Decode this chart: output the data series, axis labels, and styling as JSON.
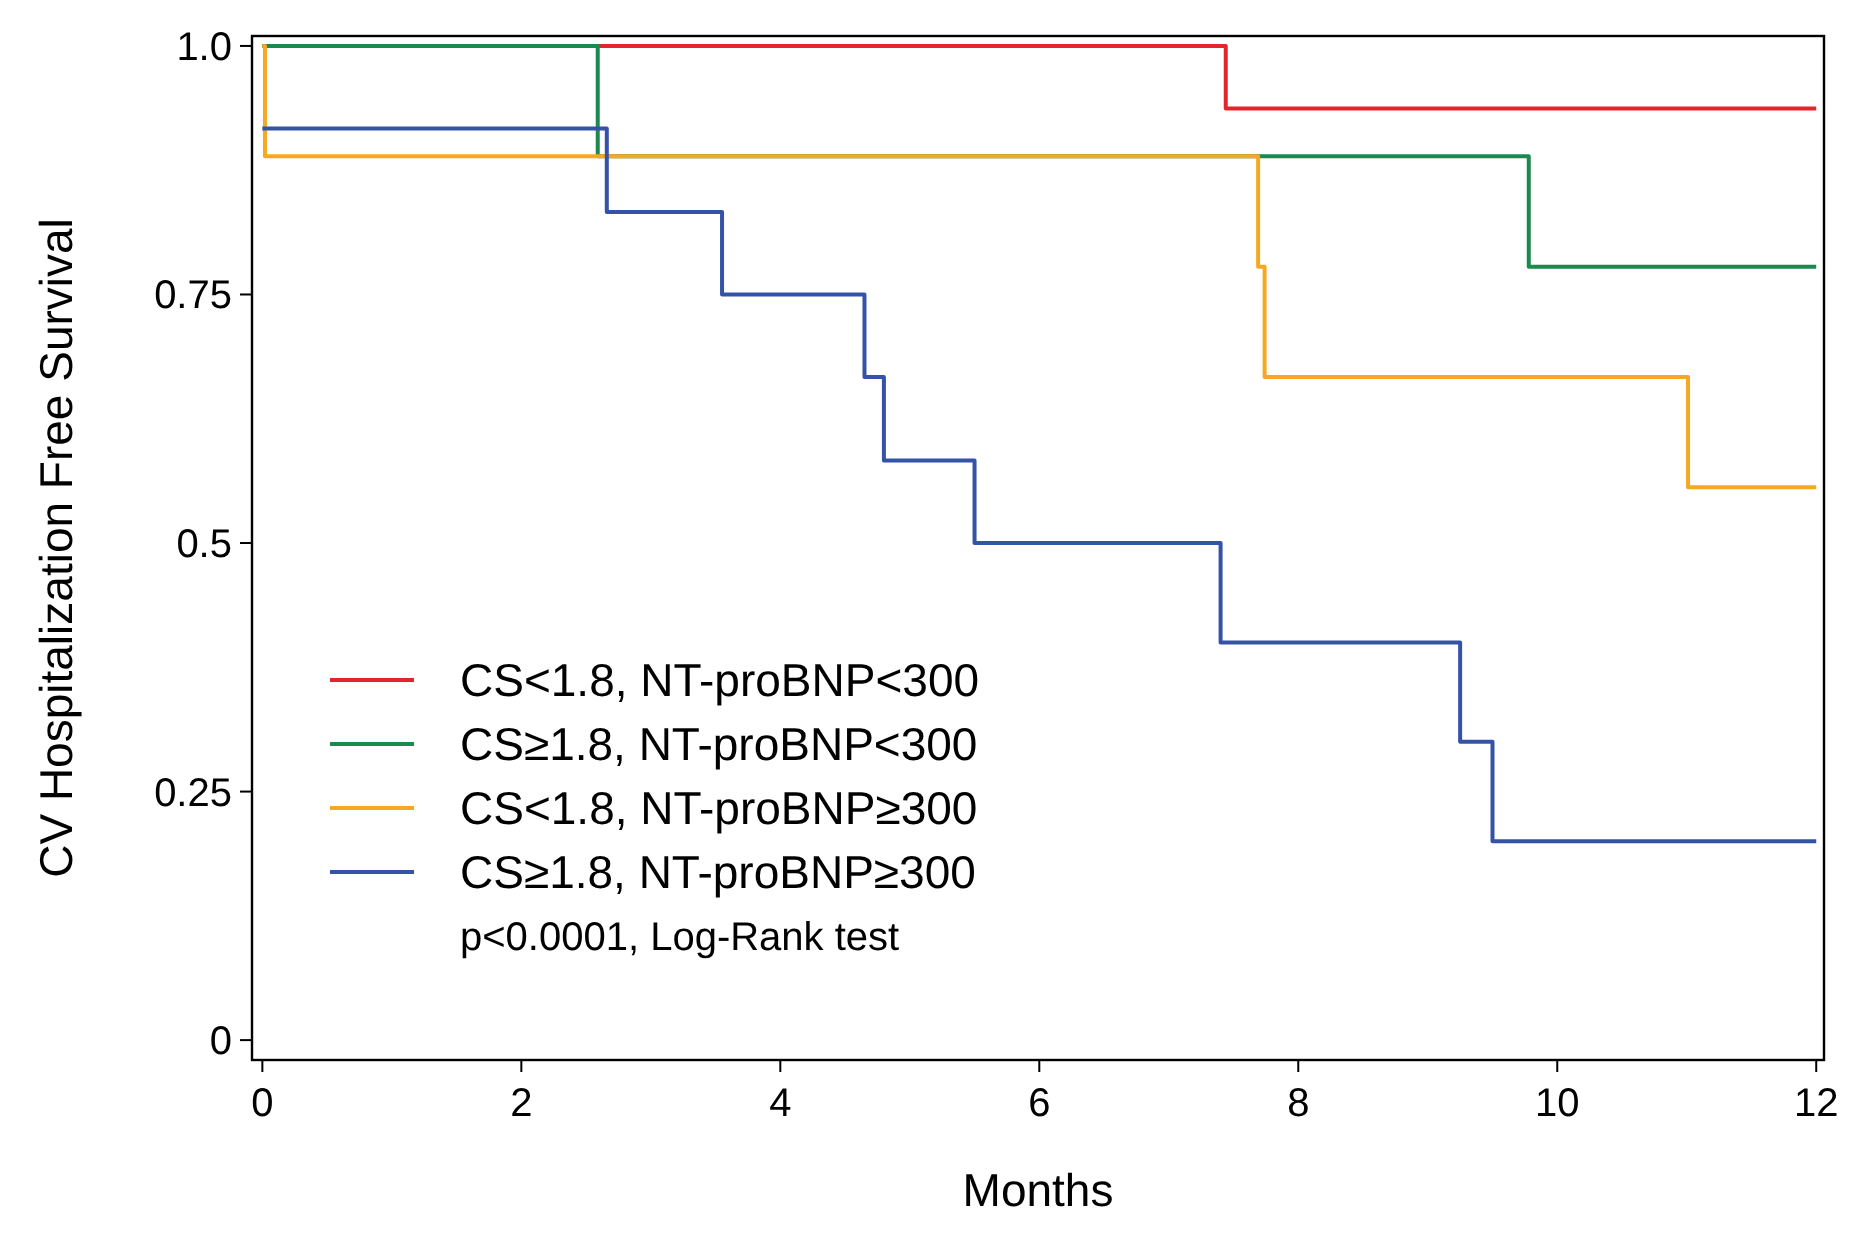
{
  "chart_data": {
    "type": "step",
    "xlabel": "Months",
    "ylabel": "CV Hospitalization Free Survival",
    "xlim": [
      -0.08,
      12.06
    ],
    "ylim": [
      -0.02,
      1.01
    ],
    "xticks": [
      0,
      2,
      4,
      6,
      8,
      10,
      12
    ],
    "yticks": [
      0,
      0.25,
      {
        "value": 0.5,
        "label": "0.5"
      },
      0.75,
      {
        "value": 1,
        "label": "1.0"
      }
    ],
    "grid": false,
    "legend": "bottom left",
    "line_style": "solid",
    "annotations": [
      "p<0.0001, Log-Rank test"
    ],
    "series": [
      {
        "name": "CS<1.8,  NT-proBNP<300",
        "color": "#e3262b",
        "x": [
          0,
          7.44,
          12
        ],
        "values": [
          1,
          0.937,
          0.937
        ]
      },
      {
        "name": "CS≥1.8,  NT-proBNP<300",
        "color": "#1b8a4f",
        "x": [
          0,
          2.59,
          9.78,
          12
        ],
        "values": [
          1,
          0.889,
          0.778,
          0.778
        ]
      },
      {
        "name": "CS<1.8,  NT-proBNP≥300",
        "color": "#f7a823",
        "x": [
          0,
          0.02,
          7.69,
          7.74,
          11.01,
          12
        ],
        "values": [
          1,
          0.889,
          0.778,
          0.667,
          0.556,
          0.556
        ]
      },
      {
        "name": "CS≥1.8,  NT-proBNP≥300",
        "color": "#3452a8",
        "x": [
          0,
          2.66,
          3.55,
          4.65,
          4.8,
          5.5,
          7.4,
          9.25,
          9.5,
          12
        ],
        "values": [
          0.917,
          0.833,
          0.75,
          0.667,
          0.583,
          0.5,
          0.4,
          0.3,
          0.2,
          0.2
        ]
      }
    ]
  }
}
